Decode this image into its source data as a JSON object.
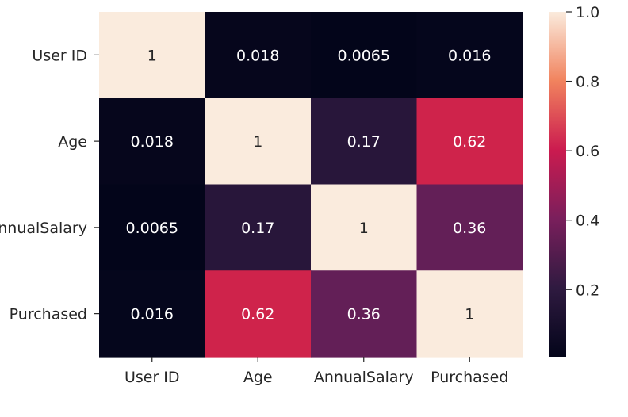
{
  "chart_data": {
    "type": "heatmap",
    "rows": [
      "User ID",
      "Age",
      "AnnualSalary",
      "Purchased"
    ],
    "columns": [
      "User ID",
      "Age",
      "AnnualSalary",
      "Purchased"
    ],
    "values": [
      [
        1,
        0.018,
        0.0065,
        0.016
      ],
      [
        0.018,
        1,
        0.17,
        0.62
      ],
      [
        0.0065,
        0.17,
        1,
        0.36
      ],
      [
        0.016,
        0.62,
        0.36,
        1
      ]
    ],
    "annotations": [
      [
        "1",
        "0.018",
        "0.0065",
        "0.016"
      ],
      [
        "0.018",
        "1",
        "0.17",
        "0.62"
      ],
      [
        "0.0065",
        "0.17",
        "1",
        "0.36"
      ],
      [
        "0.016",
        "0.62",
        "0.36",
        "1"
      ]
    ],
    "colorbar": {
      "range": [
        0.0065,
        1
      ],
      "ticks": [
        0.2,
        0.4,
        0.6,
        0.8,
        1.0
      ],
      "tick_labels": [
        "0.2",
        "0.4",
        "0.6",
        "0.8",
        "1.0"
      ],
      "colormap": "rocket"
    }
  }
}
